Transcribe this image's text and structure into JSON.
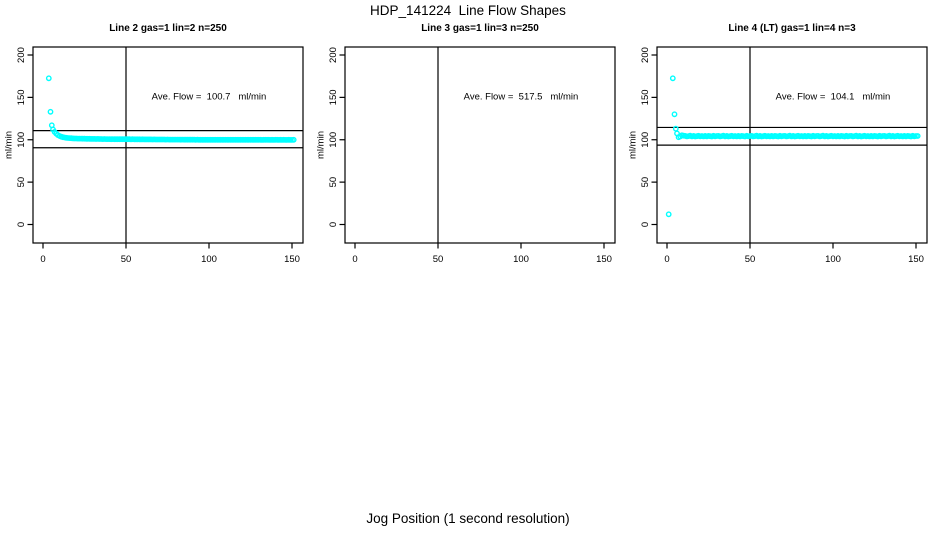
{
  "page": {
    "title": "HDP_141224  Line Flow Shapes",
    "xlabel": "Jog Position (1 second resolution)"
  },
  "colors": {
    "points": "#00FFFF",
    "axis": "#000000",
    "background": "#FFFFFF"
  },
  "chart_data": [
    {
      "type": "scatter",
      "title": "Line 2 gas=1 lin=2 n=250",
      "ylabel": "ml/min",
      "annotation": "Ave. Flow =  100.7   ml/min",
      "ave_flow_ml_min": 100.7,
      "n": 250,
      "xticks": [
        0,
        50,
        100,
        150
      ],
      "yticks": [
        0,
        50,
        100,
        150,
        200
      ],
      "xlim": [
        -6,
        156.5
      ],
      "ylim": [
        -21.5,
        209.5
      ],
      "vline_x": 50,
      "hlines": [
        110.8,
        90.6
      ],
      "annotation_xy": [
        100,
        150
      ],
      "outliers": [
        [
          3.5,
          172.5
        ],
        [
          4.5,
          133
        ],
        [
          5.3,
          117
        ]
      ],
      "band": {
        "x_start": 6,
        "x_step": 1,
        "y": [
          112.1,
          109.3,
          107.1,
          105.5,
          104.4,
          103.6,
          103.0,
          102.6,
          102.3,
          102.1,
          101.9,
          101.8,
          101.6,
          101.5,
          101.5,
          101.4,
          101.3,
          101.3,
          101.2,
          101.2,
          101.1,
          101.1,
          101.1,
          101.0,
          101.0,
          101.0,
          100.9,
          101.0,
          100.9,
          100.9,
          100.8,
          100.9,
          100.8,
          100.8,
          100.8,
          100.7,
          100.8,
          100.7,
          100.7,
          100.7,
          100.7,
          100.6,
          100.7,
          100.6,
          100.6,
          100.6,
          100.6,
          100.5,
          100.6,
          100.5,
          100.5,
          100.5,
          100.5,
          100.4,
          100.5,
          100.4,
          100.4,
          100.4,
          100.4,
          100.4,
          100.3,
          100.4,
          100.3,
          100.3,
          100.3,
          100.3,
          100.3,
          100.3,
          100.2,
          100.3,
          100.2,
          100.2,
          100.2,
          100.2,
          100.2,
          100.2,
          100.2,
          100.1,
          100.2,
          100.1,
          100.1,
          100.1,
          100.1,
          100.1,
          100.1,
          100.1,
          100.0,
          100.1,
          100.0,
          100.0,
          100.0,
          100.0,
          100.0,
          100.0,
          100.0,
          99.9,
          100.0,
          100.0,
          99.9,
          100.0,
          99.9,
          100.0,
          100.0,
          99.9,
          100.0,
          99.9,
          99.9,
          100.0,
          99.9,
          100.0,
          99.9,
          99.9,
          100.0,
          99.9,
          99.9,
          100.0,
          99.9,
          99.9,
          99.9,
          100.0,
          99.9,
          99.9,
          99.9,
          99.9,
          100.0,
          99.9,
          99.8,
          99.9,
          99.9,
          99.9,
          99.9,
          99.8,
          99.9,
          99.8,
          99.9,
          99.9,
          99.8,
          99.9,
          99.8,
          99.9,
          99.8,
          99.8,
          99.9,
          99.8,
          99.8,
          99.9
        ]
      }
    },
    {
      "type": "scatter",
      "title": "Line 3 gas=1 lin=3 n=250",
      "ylabel": "ml/min",
      "annotation": "Ave. Flow =  517.5   ml/min",
      "ave_flow_ml_min": 517.5,
      "n": 250,
      "xticks": [
        0,
        50,
        100,
        150
      ],
      "yticks": [
        0,
        50,
        100,
        150,
        200
      ],
      "xlim": [
        -6,
        156.5
      ],
      "ylim": [
        -21.5,
        209.5
      ],
      "vline_x": 50,
      "hlines": [],
      "annotation_xy": [
        100,
        150
      ],
      "outliers": [],
      "band": {
        "x_start": 6,
        "x_step": 1,
        "y": []
      }
    },
    {
      "type": "scatter",
      "title": "Line 4 (LT) gas=1 lin=4 n=3",
      "ylabel": "ml/min",
      "annotation": "Ave. Flow =  104.1   ml/min",
      "ave_flow_ml_min": 104.1,
      "n": 3,
      "xticks": [
        0,
        50,
        100,
        150
      ],
      "yticks": [
        0,
        50,
        100,
        150,
        200
      ],
      "xlim": [
        -6,
        156.5
      ],
      "ylim": [
        -21.5,
        209.5
      ],
      "vline_x": 50,
      "hlines": [
        114.5,
        93.7
      ],
      "annotation_xy": [
        100,
        150
      ],
      "outliers": [
        [
          1,
          12
        ],
        [
          3.5,
          172.5
        ],
        [
          4.5,
          130
        ],
        [
          5.3,
          113
        ]
      ],
      "band": {
        "x_start": 6,
        "x_step": 1,
        "y": [
          107.5,
          103.0,
          103.8,
          105.2,
          104.8,
          104.6,
          103.9,
          104.3,
          104.8,
          104.0,
          104.5,
          103.8,
          104.2,
          104.7,
          104.1,
          104.4,
          104.0,
          104.6,
          103.9,
          104.5,
          104.2,
          103.8,
          104.7,
          104.1,
          104.4,
          104.6,
          103.9,
          104.3,
          104.8,
          104.0,
          104.5,
          103.8,
          104.2,
          104.7,
          104.1,
          104.4,
          104.0,
          104.6,
          103.9,
          104.5,
          104.2,
          103.8,
          104.7,
          104.1,
          104.4,
          104.6,
          103.9,
          104.3,
          104.8,
          104.0,
          104.5,
          103.8,
          104.2,
          104.7,
          104.1,
          104.4,
          104.0,
          104.6,
          103.9,
          104.5,
          104.2,
          103.8,
          104.7,
          104.1,
          104.4,
          104.6,
          103.9,
          104.3,
          104.8,
          104.0,
          104.5,
          103.8,
          104.2,
          104.7,
          104.1,
          104.4,
          104.0,
          104.6,
          103.9,
          104.5,
          104.2,
          103.8,
          104.7,
          104.1,
          104.4,
          104.6,
          103.9,
          104.3,
          104.8,
          104.0,
          104.5,
          103.8,
          104.2,
          104.7,
          104.1,
          104.4,
          104.0,
          104.6,
          103.9,
          104.5,
          104.2,
          103.8,
          104.7,
          104.1,
          104.4,
          104.6,
          103.9,
          104.3,
          104.8,
          104.0,
          104.5,
          103.8,
          104.2,
          104.7,
          104.1,
          104.4,
          104.0,
          104.6,
          103.9,
          104.5,
          104.2,
          103.8,
          104.7,
          104.1,
          104.4,
          104.6,
          103.9,
          104.3,
          104.8,
          104.0,
          104.5,
          103.8,
          104.2,
          104.7,
          104.1,
          104.4,
          104.0,
          104.6,
          103.9,
          104.5,
          104.2,
          103.8,
          104.7,
          104.1,
          104.4,
          104.4
        ]
      }
    }
  ]
}
